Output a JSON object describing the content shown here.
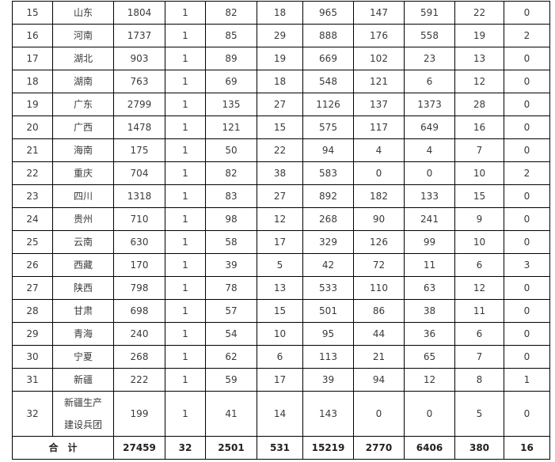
{
  "rows": [
    {
      "no": "15",
      "region": "山东",
      "c1": "1804",
      "c2": "1",
      "c3": "82",
      "c4": "18",
      "c5": "965",
      "c6": "147",
      "c7": "591",
      "c8": "22",
      "c9": "0"
    },
    {
      "no": "16",
      "region": "河南",
      "c1": "1737",
      "c2": "1",
      "c3": "85",
      "c4": "29",
      "c5": "888",
      "c6": "176",
      "c7": "558",
      "c8": "19",
      "c9": "2"
    },
    {
      "no": "17",
      "region": "湖北",
      "c1": "903",
      "c2": "1",
      "c3": "89",
      "c4": "19",
      "c5": "669",
      "c6": "102",
      "c7": "23",
      "c8": "13",
      "c9": "0"
    },
    {
      "no": "18",
      "region": "湖南",
      "c1": "763",
      "c2": "1",
      "c3": "69",
      "c4": "18",
      "c5": "548",
      "c6": "121",
      "c7": "6",
      "c8": "12",
      "c9": "0"
    },
    {
      "no": "19",
      "region": "广东",
      "c1": "2799",
      "c2": "1",
      "c3": "135",
      "c4": "27",
      "c5": "1126",
      "c6": "137",
      "c7": "1373",
      "c8": "28",
      "c9": "0"
    },
    {
      "no": "20",
      "region": "广西",
      "c1": "1478",
      "c2": "1",
      "c3": "121",
      "c4": "15",
      "c5": "575",
      "c6": "117",
      "c7": "649",
      "c8": "16",
      "c9": "0"
    },
    {
      "no": "21",
      "region": "海南",
      "c1": "175",
      "c2": "1",
      "c3": "50",
      "c4": "22",
      "c5": "94",
      "c6": "4",
      "c7": "4",
      "c8": "7",
      "c9": "0"
    },
    {
      "no": "22",
      "region": "重庆",
      "c1": "704",
      "c2": "1",
      "c3": "82",
      "c4": "38",
      "c5": "583",
      "c6": "0",
      "c7": "0",
      "c8": "10",
      "c9": "2"
    },
    {
      "no": "23",
      "region": "四川",
      "c1": "1318",
      "c2": "1",
      "c3": "83",
      "c4": "27",
      "c5": "892",
      "c6": "182",
      "c7": "133",
      "c8": "15",
      "c9": "0"
    },
    {
      "no": "24",
      "region": "贵州",
      "c1": "710",
      "c2": "1",
      "c3": "98",
      "c4": "12",
      "c5": "268",
      "c6": "90",
      "c7": "241",
      "c8": "9",
      "c9": "0"
    },
    {
      "no": "25",
      "region": "云南",
      "c1": "630",
      "c2": "1",
      "c3": "58",
      "c4": "17",
      "c5": "329",
      "c6": "126",
      "c7": "99",
      "c8": "10",
      "c9": "0"
    },
    {
      "no": "26",
      "region": "西藏",
      "c1": "170",
      "c2": "1",
      "c3": "39",
      "c4": "5",
      "c5": "42",
      "c6": "72",
      "c7": "11",
      "c8": "6",
      "c9": "3"
    },
    {
      "no": "27",
      "region": "陕西",
      "c1": "798",
      "c2": "1",
      "c3": "78",
      "c4": "13",
      "c5": "533",
      "c6": "110",
      "c7": "63",
      "c8": "12",
      "c9": "0"
    },
    {
      "no": "28",
      "region": "甘肃",
      "c1": "698",
      "c2": "1",
      "c3": "57",
      "c4": "15",
      "c5": "501",
      "c6": "86",
      "c7": "38",
      "c8": "11",
      "c9": "0"
    },
    {
      "no": "29",
      "region": "青海",
      "c1": "240",
      "c2": "1",
      "c3": "54",
      "c4": "10",
      "c5": "95",
      "c6": "44",
      "c7": "36",
      "c8": "6",
      "c9": "0"
    },
    {
      "no": "30",
      "region": "宁夏",
      "c1": "268",
      "c2": "1",
      "c3": "62",
      "c4": "6",
      "c5": "113",
      "c6": "21",
      "c7": "65",
      "c8": "7",
      "c9": "0"
    },
    {
      "no": "31",
      "region": "新疆",
      "c1": "222",
      "c2": "1",
      "c3": "59",
      "c4": "17",
      "c5": "39",
      "c6": "94",
      "c7": "12",
      "c8": "8",
      "c9": "1"
    }
  ],
  "last_row": {
    "no": "32",
    "region_line1": "新疆生产",
    "region_line2": "建设兵团",
    "c1": "199",
    "c2": "1",
    "c3": "41",
    "c4": "14",
    "c5": "143",
    "c6": "0",
    "c7": "0",
    "c8": "5",
    "c9": "0"
  },
  "total": {
    "label": "合　计",
    "c1": "27459",
    "c2": "32",
    "c3": "2501",
    "c4": "531",
    "c5": "15219",
    "c6": "2770",
    "c7": "6406",
    "c8": "380",
    "c9": "16"
  }
}
